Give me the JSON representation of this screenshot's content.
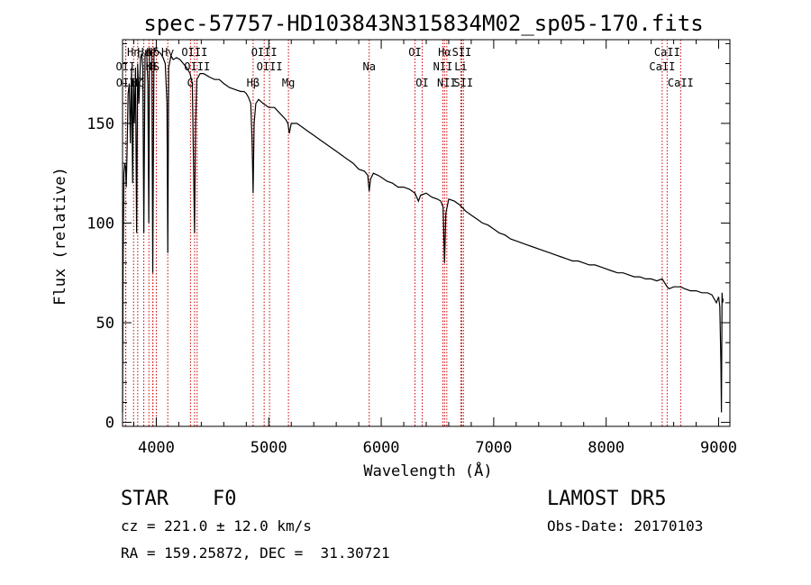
{
  "chart_data": {
    "type": "line",
    "title": "spec-57757-HD103843N315834M02_sp05-170.fits",
    "xlabel": "Wavelength (Å)",
    "ylabel": "Flux (relative)",
    "xlim": [
      3700,
      9100
    ],
    "ylim": [
      -2,
      192
    ],
    "x_ticks": [
      4000,
      5000,
      6000,
      7000,
      8000,
      9000
    ],
    "y_ticks": [
      0,
      50,
      100,
      150
    ],
    "grid": false,
    "line_color": "#000000",
    "marker_line_color": "#cc0000",
    "series": [
      {
        "x": [
          3700,
          3705,
          3712,
          3720,
          3727,
          3733,
          3740,
          3745,
          3750,
          3760,
          3770,
          3780,
          3790,
          3797,
          3805,
          3815,
          3825,
          3835,
          3845,
          3860,
          3870,
          3880,
          3889,
          3900,
          3915,
          3925,
          3933,
          3940,
          3950,
          3960,
          3968,
          3980,
          3990,
          4000,
          4020,
          4040,
          4060,
          4080,
          4095,
          4102,
          4110,
          4130,
          4150,
          4180,
          4210,
          4240,
          4270,
          4300,
          4320,
          4340,
          4350,
          4360,
          4390,
          4420,
          4450,
          4480,
          4520,
          4560,
          4600,
          4650,
          4700,
          4750,
          4780,
          4800,
          4820,
          4840,
          4852,
          4861,
          4870,
          4885,
          4910,
          4950,
          5000,
          5050,
          5100,
          5150,
          5170,
          5183,
          5200,
          5250,
          5300,
          5350,
          5400,
          5450,
          5500,
          5550,
          5600,
          5650,
          5700,
          5750,
          5800,
          5850,
          5880,
          5893,
          5905,
          5930,
          5970,
          6000,
          6050,
          6100,
          6150,
          6200,
          6250,
          6300,
          6330,
          6350,
          6400,
          6450,
          6500,
          6530,
          6550,
          6563,
          6575,
          6600,
          6650,
          6700,
          6750,
          6800,
          6850,
          6900,
          6950,
          7000,
          7050,
          7100,
          7150,
          7200,
          7250,
          7300,
          7350,
          7400,
          7450,
          7500,
          7550,
          7600,
          7650,
          7700,
          7750,
          7800,
          7850,
          7900,
          7950,
          8000,
          8050,
          8100,
          8150,
          8200,
          8250,
          8300,
          8350,
          8400,
          8450,
          8498,
          8520,
          8542,
          8560,
          8600,
          8662,
          8700,
          8750,
          8800,
          8850,
          8900,
          8940,
          8960,
          8980,
          9000,
          9010,
          9020,
          9025,
          9030,
          9035,
          9040
        ],
        "y": [
          5,
          80,
          125,
          130,
          128,
          118,
          135,
          150,
          165,
          170,
          140,
          178,
          120,
          172,
          150,
          178,
          95,
          180,
          160,
          183,
          185,
          178,
          95,
          185,
          186,
          170,
          100,
          188,
          184,
          187,
          75,
          188,
          186,
          187,
          186,
          185,
          183,
          180,
          160,
          85,
          178,
          184,
          182,
          183,
          182,
          180,
          178,
          175,
          170,
          95,
          150,
          172,
          175,
          175,
          174,
          173,
          172,
          172,
          170,
          168,
          167,
          166,
          166,
          165,
          163,
          160,
          140,
          115,
          150,
          160,
          162,
          160,
          158,
          158,
          155,
          152,
          150,
          145,
          150,
          150,
          148,
          146,
          144,
          142,
          140,
          138,
          136,
          134,
          132,
          130,
          127,
          126,
          124,
          116,
          122,
          125,
          124,
          123,
          121,
          120,
          118,
          118,
          117,
          115,
          111,
          114,
          115,
          113,
          112,
          111,
          108,
          80,
          105,
          112,
          111,
          109,
          106,
          104,
          102,
          100,
          99,
          97,
          95,
          94,
          92,
          91,
          90,
          89,
          88,
          87,
          86,
          85,
          84,
          83,
          82,
          81,
          81,
          80,
          79,
          79,
          78,
          77,
          76,
          75,
          75,
          74,
          73,
          73,
          72,
          72,
          71,
          72,
          70,
          68,
          67,
          68,
          68,
          67,
          66,
          66,
          65,
          65,
          64,
          62,
          60,
          63,
          58,
          30,
          5,
          65,
          60,
          62
        ]
      }
    ],
    "line_markers": [
      {
        "x": 3727,
        "label": "OII",
        "row": 2
      },
      {
        "x": 3729,
        "label": "OII",
        "row": 3
      },
      {
        "x": 3798,
        "label": "Hη",
        "row": 1
      },
      {
        "x": 3835,
        "label": "Hζ",
        "row": 3
      },
      {
        "x": 3889,
        "label": "Hε",
        "row": 1
      },
      {
        "x": 3934,
        "label": "K",
        "row": 2
      },
      {
        "x": 3969,
        "label": "H",
        "row": 2
      },
      {
        "x": 3970,
        "label": "Hδ",
        "row": 1
      },
      {
        "x": 4000,
        "label": "S",
        "row": 2
      },
      {
        "x": 4102,
        "label": "Hγ",
        "row": 1
      },
      {
        "x": 4304,
        "label": "G",
        "row": 3
      },
      {
        "x": 4340,
        "label": "OIII",
        "row": 1
      },
      {
        "x": 4363,
        "label": "OIII",
        "row": 2
      },
      {
        "x": 4861,
        "label": "Hβ",
        "row": 3
      },
      {
        "x": 4959,
        "label": "OIII",
        "row": 1
      },
      {
        "x": 5007,
        "label": "OIII",
        "row": 2
      },
      {
        "x": 5175,
        "label": "Mg",
        "row": 3
      },
      {
        "x": 5893,
        "label": "Na",
        "row": 2
      },
      {
        "x": 6300,
        "label": "OI",
        "row": 1
      },
      {
        "x": 6364,
        "label": "OI",
        "row": 3
      },
      {
        "x": 6548,
        "label": "NII",
        "row": 2
      },
      {
        "x": 6563,
        "label": "Hα",
        "row": 1
      },
      {
        "x": 6583,
        "label": "NII",
        "row": 3
      },
      {
        "x": 6708,
        "label": "Li",
        "row": 2
      },
      {
        "x": 6716,
        "label": "SII",
        "row": 1
      },
      {
        "x": 6731,
        "label": "SII",
        "row": 3
      },
      {
        "x": 8498,
        "label": "CaII",
        "row": 2
      },
      {
        "x": 8542,
        "label": "CaII",
        "row": 1
      },
      {
        "x": 8662,
        "label": "CaII",
        "row": 3
      }
    ]
  },
  "info": {
    "object_class": "STAR",
    "subclass": "F0",
    "survey": "LAMOST DR5",
    "redshift": "cz = 221.0 ± 12.0 km/s",
    "obs_date": "Obs-Date: 20170103",
    "coordinates": "RA = 159.25872, DEC =  31.30721"
  }
}
